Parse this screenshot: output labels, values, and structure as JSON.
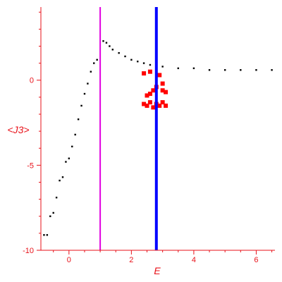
{
  "chart_data": {
    "type": "scatter",
    "xlabel": "E",
    "ylabel": "<J3>",
    "xlim": [
      -0.9,
      6.6
    ],
    "ylim": [
      -10,
      4.3
    ],
    "x_ticks": [
      0,
      2,
      4,
      6
    ],
    "x_tick_labels": [
      "0",
      "2",
      "4",
      "6"
    ],
    "y_ticks": [
      0,
      -5,
      -10
    ],
    "y_tick_labels": [
      "0",
      "-5",
      "-10"
    ],
    "vertical_lines": [
      {
        "x": 1.0,
        "color": "#e000e0"
      },
      {
        "x": 2.8,
        "color": "#0000ff"
      }
    ],
    "colors": {
      "axis": "#e8121a",
      "tick_text": "#e8121a",
      "background_points": "#000000",
      "highlight_points": "#ff0000"
    },
    "series": [
      {
        "color": "#000000",
        "points": [
          [
            -0.8,
            -9.1
          ],
          [
            -0.7,
            -9.1
          ],
          [
            -0.6,
            -8.0
          ],
          [
            -0.5,
            -7.8
          ],
          [
            -0.4,
            -6.9
          ],
          [
            -0.3,
            -5.9
          ],
          [
            -0.2,
            -5.7
          ],
          [
            -0.1,
            -4.8
          ],
          [
            0.0,
            -4.6
          ],
          [
            0.1,
            -3.9
          ],
          [
            0.2,
            -3.2
          ],
          [
            0.3,
            -2.3
          ],
          [
            0.4,
            -1.5
          ],
          [
            0.5,
            -0.8
          ],
          [
            0.6,
            -0.2
          ],
          [
            0.7,
            0.5
          ],
          [
            0.8,
            1.0
          ],
          [
            0.9,
            1.2
          ],
          [
            1.1,
            2.3
          ],
          [
            1.2,
            2.2
          ],
          [
            1.3,
            2.0
          ],
          [
            1.4,
            1.8
          ],
          [
            1.6,
            1.6
          ],
          [
            1.8,
            1.4
          ],
          [
            2.0,
            1.2
          ],
          [
            2.2,
            1.1
          ],
          [
            2.4,
            1.0
          ],
          [
            2.6,
            0.9
          ],
          [
            3.0,
            0.8
          ],
          [
            3.5,
            0.7
          ],
          [
            4.0,
            0.7
          ],
          [
            4.5,
            0.6
          ],
          [
            5.0,
            0.6
          ],
          [
            5.5,
            0.6
          ],
          [
            6.0,
            0.6
          ],
          [
            6.5,
            0.6
          ]
        ]
      },
      {
        "color": "#ff0000",
        "points": [
          [
            2.4,
            -1.4
          ],
          [
            2.5,
            -1.5
          ],
          [
            2.6,
            -1.3
          ],
          [
            2.7,
            -1.6
          ],
          [
            2.8,
            -1.4
          ],
          [
            2.9,
            -1.5
          ],
          [
            3.0,
            -1.3
          ],
          [
            3.1,
            -1.5
          ],
          [
            2.5,
            -0.9
          ],
          [
            2.6,
            -0.8
          ],
          [
            2.7,
            -0.6
          ],
          [
            2.8,
            -0.4
          ],
          [
            3.0,
            -0.6
          ],
          [
            3.1,
            -0.7
          ],
          [
            2.4,
            0.4
          ],
          [
            2.6,
            0.5
          ],
          [
            2.9,
            0.3
          ],
          [
            3.0,
            -0.2
          ]
        ]
      }
    ]
  }
}
